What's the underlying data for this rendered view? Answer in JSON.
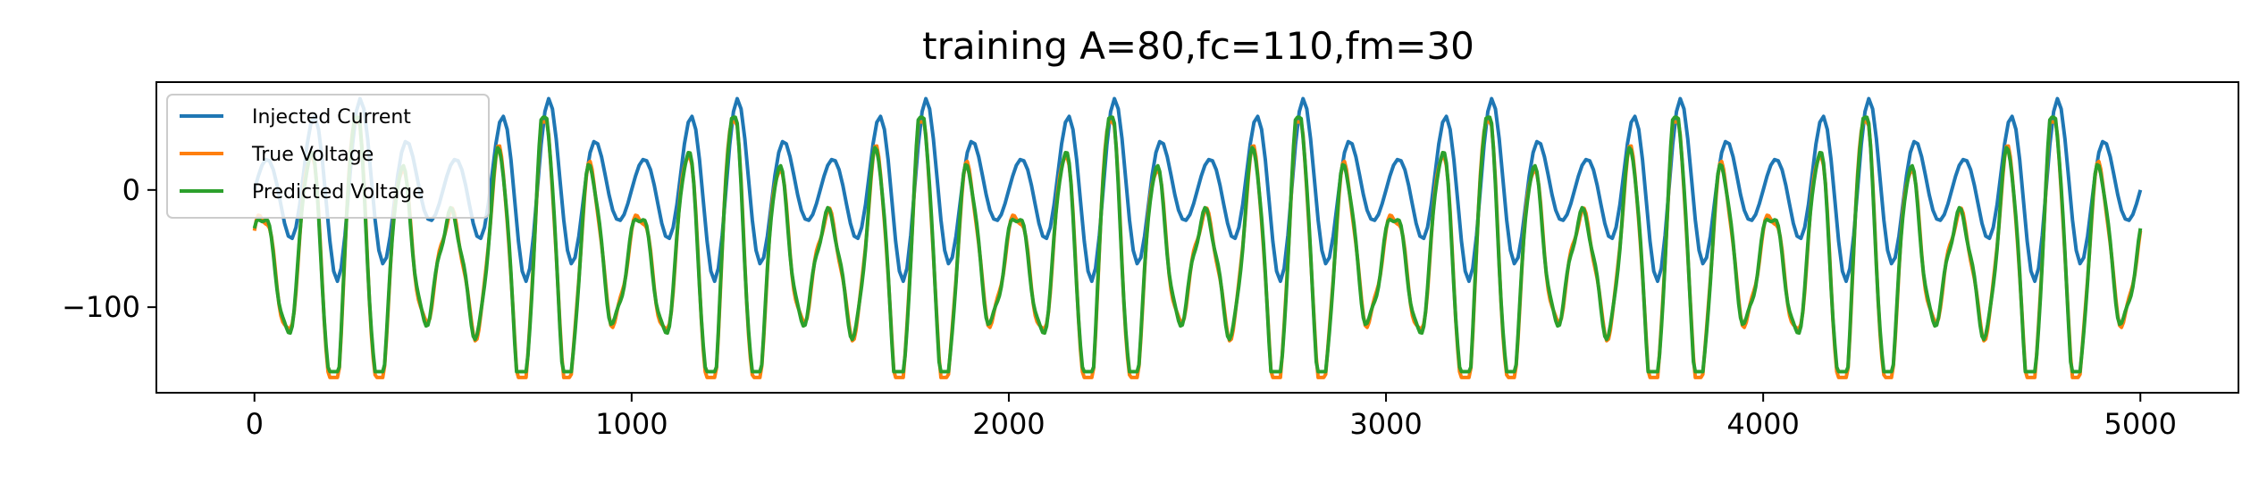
{
  "chart_data": {
    "type": "line",
    "title": "training A=80,fc=110,fm=30",
    "xlabel": "",
    "ylabel": "",
    "xlim": [
      -260,
      5260
    ],
    "ylim": [
      -173,
      92
    ],
    "x_ticks": [
      0,
      1000,
      2000,
      3000,
      4000,
      5000
    ],
    "x_tick_labels": [
      "0",
      "1000",
      "2000",
      "3000",
      "4000",
      "5000"
    ],
    "y_ticks": [
      -100,
      0
    ],
    "y_tick_labels": [
      "−100",
      "0"
    ],
    "grid": false,
    "legend_position": "top-left",
    "series": [
      {
        "name": "Injected Current",
        "color": "#1f77b4",
        "x_start": 0,
        "x_end": 5000,
        "sample_step": 10,
        "model": "am",
        "amplitude": 80,
        "carrier_period": 125,
        "modulation_period": 500
      },
      {
        "name": "True Voltage",
        "color": "#ff7f0e",
        "x_start": 0,
        "x_end": 5000,
        "sample_step": 5,
        "model": "response",
        "baseline": -62,
        "min": -160,
        "max": 58
      },
      {
        "name": "Predicted Voltage",
        "color": "#2ca02c",
        "x_start": 0,
        "x_end": 5000,
        "sample_step": 5,
        "model": "response",
        "baseline": -62,
        "min": -155,
        "max": 62
      }
    ]
  }
}
